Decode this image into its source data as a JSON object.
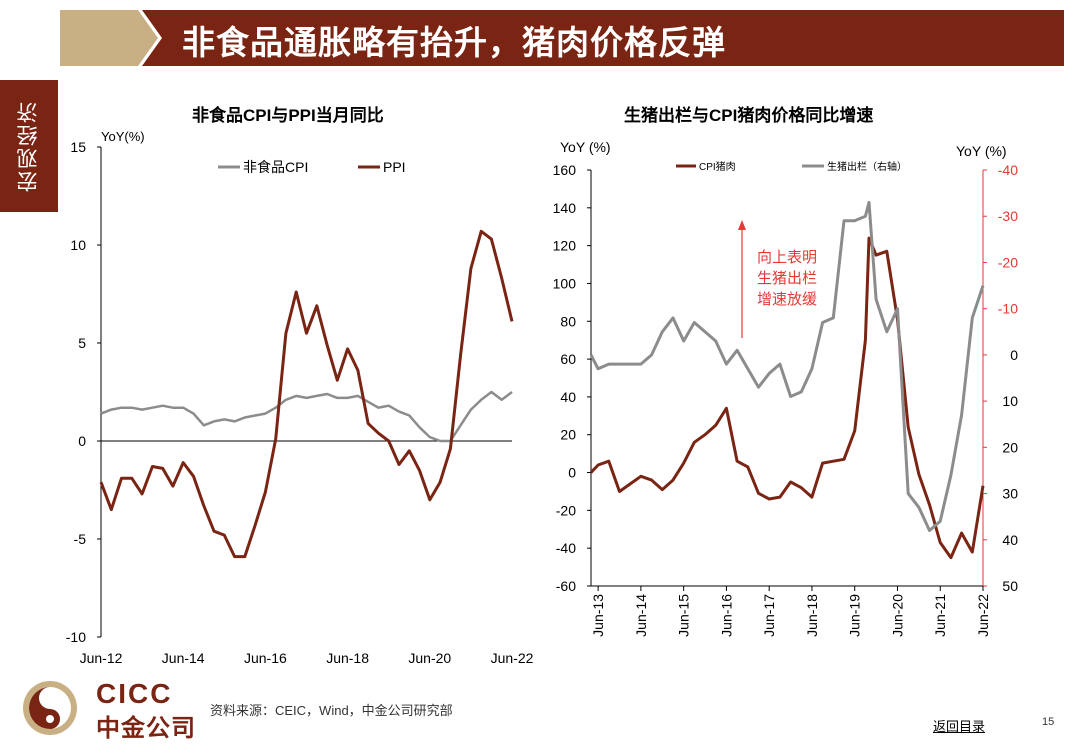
{
  "header": {
    "title": "非食品通胀略有抬升，猪肉价格反弹",
    "section": "宏观经济"
  },
  "colors": {
    "brand": "#7a2413",
    "gold": "#c9b084",
    "ppi": "#7a2413",
    "cpi": "#8c8c8c",
    "pig": "#8c8c8c",
    "annotation": "#e53935"
  },
  "chart_data": [
    {
      "type": "line",
      "title": "非食品CPI与PPI当月同比",
      "ylabel": "YoY(%)",
      "ylim": [
        -10,
        15
      ],
      "yticks": [
        15,
        10,
        5,
        0,
        -5,
        -10
      ],
      "xticks": [
        "Jun-12",
        "Jun-14",
        "Jun-16",
        "Jun-18",
        "Jun-20",
        "Jun-22"
      ],
      "xrange": [
        "2012-06",
        "2022-06"
      ],
      "legend_position": "top",
      "series": [
        {
          "name": "非食品CPI",
          "x": [
            "2012-06",
            "2012-09",
            "2012-12",
            "2013-03",
            "2013-06",
            "2013-09",
            "2013-12",
            "2014-03",
            "2014-06",
            "2014-09",
            "2014-12",
            "2015-03",
            "2015-06",
            "2015-09",
            "2015-12",
            "2016-03",
            "2016-06",
            "2016-09",
            "2016-12",
            "2017-03",
            "2017-06",
            "2017-09",
            "2017-12",
            "2018-03",
            "2018-06",
            "2018-09",
            "2018-12",
            "2019-03",
            "2019-06",
            "2019-09",
            "2019-12",
            "2020-03",
            "2020-06",
            "2020-09",
            "2020-12",
            "2021-03",
            "2021-06",
            "2021-09",
            "2021-12",
            "2022-03",
            "2022-06"
          ],
          "values": [
            1.4,
            1.6,
            1.7,
            1.7,
            1.6,
            1.7,
            1.8,
            1.7,
            1.7,
            1.4,
            0.8,
            1.0,
            1.1,
            1.0,
            1.2,
            1.3,
            1.4,
            1.7,
            2.1,
            2.3,
            2.2,
            2.3,
            2.4,
            2.2,
            2.2,
            2.3,
            2.0,
            1.7,
            1.8,
            1.5,
            1.3,
            0.7,
            0.2,
            0.0,
            0.0,
            0.8,
            1.6,
            2.1,
            2.5,
            2.1,
            2.5
          ]
        },
        {
          "name": "PPI",
          "x": [
            "2012-06",
            "2012-09",
            "2012-12",
            "2013-03",
            "2013-06",
            "2013-09",
            "2013-12",
            "2014-03",
            "2014-06",
            "2014-09",
            "2014-12",
            "2015-03",
            "2015-06",
            "2015-09",
            "2015-12",
            "2016-03",
            "2016-06",
            "2016-09",
            "2016-12",
            "2017-03",
            "2017-06",
            "2017-09",
            "2017-12",
            "2018-03",
            "2018-06",
            "2018-09",
            "2018-12",
            "2019-03",
            "2019-06",
            "2019-09",
            "2019-12",
            "2020-03",
            "2020-06",
            "2020-09",
            "2020-12",
            "2021-03",
            "2021-06",
            "2021-09",
            "2021-12",
            "2022-03",
            "2022-06"
          ],
          "values": [
            -2.1,
            -3.5,
            -1.9,
            -1.9,
            -2.7,
            -1.3,
            -1.4,
            -2.3,
            -1.1,
            -1.8,
            -3.3,
            -4.6,
            -4.8,
            -5.9,
            -5.9,
            -4.3,
            -2.6,
            0.1,
            5.5,
            7.6,
            5.5,
            6.9,
            4.9,
            3.1,
            4.7,
            3.6,
            0.9,
            0.4,
            0.0,
            -1.2,
            -0.5,
            -1.5,
            -3.0,
            -2.1,
            -0.4,
            4.4,
            8.8,
            10.7,
            10.3,
            8.3,
            6.1
          ]
        }
      ]
    },
    {
      "type": "line",
      "title": "生猪出栏与CPI猪肉价格同比增速",
      "ylabel": "YoY (%)",
      "ylabel_right": "YoY (%)",
      "ylim": [
        -60,
        160
      ],
      "ylim_right": [
        50,
        -40
      ],
      "yticks": [
        160,
        140,
        120,
        100,
        80,
        60,
        40,
        20,
        0,
        -20,
        -40,
        -60
      ],
      "yticks_right": [
        -40,
        -30,
        -20,
        -10,
        0,
        10,
        20,
        30,
        40,
        50
      ],
      "xticks": [
        "Jun-13",
        "Jun-14",
        "Jun-15",
        "Jun-16",
        "Jun-17",
        "Jun-18",
        "Jun-19",
        "Jun-20",
        "Jun-21",
        "Jun-22"
      ],
      "xrange": [
        "2013-04",
        "2022-06"
      ],
      "annotation": "向上表明生猪出栏增速放缓",
      "annotation_lines": [
        "向上表明",
        "生猪出栏",
        "增速放缓"
      ],
      "legend_position": "top",
      "series": [
        {
          "name": "CPI猪肉",
          "axis": "left",
          "x": [
            "2013-04",
            "2013-06",
            "2013-09",
            "2013-12",
            "2014-03",
            "2014-06",
            "2014-09",
            "2014-12",
            "2015-03",
            "2015-06",
            "2015-09",
            "2015-12",
            "2016-03",
            "2016-06",
            "2016-09",
            "2016-12",
            "2017-03",
            "2017-06",
            "2017-09",
            "2017-12",
            "2018-03",
            "2018-06",
            "2018-09",
            "2018-12",
            "2019-03",
            "2019-06",
            "2019-09",
            "2019-10",
            "2019-12",
            "2020-03",
            "2020-06",
            "2020-09",
            "2020-12",
            "2021-03",
            "2021-06",
            "2021-09",
            "2021-12",
            "2022-03",
            "2022-06"
          ],
          "values": [
            0,
            4,
            6,
            -10,
            -6,
            -2,
            -4,
            -9,
            -4,
            5,
            16,
            20,
            25,
            34,
            6,
            3,
            -11,
            -14,
            -13,
            -5,
            -8,
            -13,
            5,
            6,
            7,
            22,
            70,
            124,
            115,
            117,
            81,
            24,
            -1,
            -17,
            -37,
            -45,
            -32,
            -42,
            -7
          ]
        },
        {
          "name": "生猪出栏（右轴）",
          "axis": "right",
          "x": [
            "2013-04",
            "2013-06",
            "2013-09",
            "2013-12",
            "2014-03",
            "2014-06",
            "2014-09",
            "2014-12",
            "2015-03",
            "2015-06",
            "2015-09",
            "2015-12",
            "2016-03",
            "2016-06",
            "2016-09",
            "2016-12",
            "2017-03",
            "2017-06",
            "2017-09",
            "2017-12",
            "2018-03",
            "2018-06",
            "2018-09",
            "2018-12",
            "2019-03",
            "2019-06",
            "2019-09",
            "2019-10",
            "2019-12",
            "2020-03",
            "2020-06",
            "2020-09",
            "2020-12",
            "2021-03",
            "2021-06",
            "2021-09",
            "2021-12",
            "2022-03",
            "2022-06"
          ],
          "values": [
            0,
            3,
            2,
            2,
            2,
            2,
            0,
            -5,
            -8,
            -3,
            -7,
            -5,
            -3,
            2,
            -1,
            3,
            7,
            4,
            2,
            9,
            8,
            3,
            -7,
            -8,
            -29,
            -29,
            -30,
            -33,
            -12,
            -5,
            -10,
            30,
            33,
            38,
            36,
            26,
            13,
            -8,
            -15
          ]
        }
      ]
    }
  ],
  "footer": {
    "brand_en": "CICC",
    "brand_cn": "中金公司",
    "source": "资料来源：CEIC，Wind，中金公司研究部",
    "back_link": "返回目录",
    "page_number": "15"
  }
}
